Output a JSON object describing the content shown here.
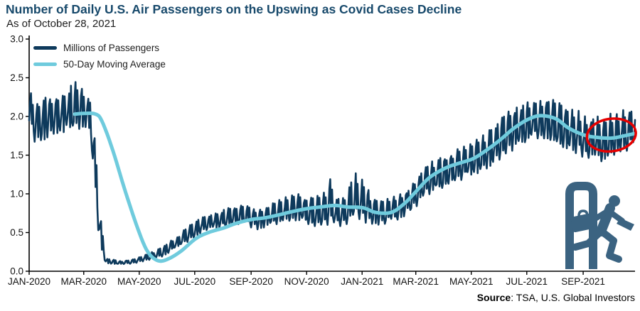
{
  "header": {
    "title": "Number of Daily U.S. Air Passengers on the Upswing as Covid Cases Decline",
    "subtitle": "As of October 28, 2021"
  },
  "source": {
    "label": "Source",
    "rest": ": TSA, U.S. Global Investors"
  },
  "colors": {
    "navy": "#0e3a5c",
    "ma_blue": "#6fcbdd",
    "title": "#17496b",
    "text": "#1d1d1d",
    "axis": "#000000",
    "annotation_red": "#e60000",
    "icon": "#3b6381"
  },
  "chart_data": {
    "type": "line",
    "title": "Number of Daily U.S. Air Passengers on the Upswing as Covid Cases Decline",
    "subtitle": "As of October 28, 2021",
    "xlabel": "",
    "ylabel": "Millions of passengers",
    "ylim": [
      0,
      3
    ],
    "y_tick_labels": [
      "0.0",
      "0.5",
      "1.0",
      "1.5",
      "2.0",
      "2.5",
      "3.0"
    ],
    "grid": false,
    "legend_position": "top-left",
    "total_days": 666,
    "x_ticks": [
      {
        "label": "JAN-2020",
        "day": 0
      },
      {
        "label": "MAR-2020",
        "day": 60
      },
      {
        "label": "MAY-2020",
        "day": 121
      },
      {
        "label": "JUL-2020",
        "day": 182
      },
      {
        "label": "SEP-2020",
        "day": 244
      },
      {
        "label": "NOV-2020",
        "day": 305
      },
      {
        "label": "JAN-2021",
        "day": 366
      },
      {
        "label": "MAR-2021",
        "day": 425
      },
      {
        "label": "MAY-2021",
        "day": 486
      },
      {
        "label": "JUL-2021",
        "day": 547
      },
      {
        "label": "SEP-2021",
        "day": 609
      }
    ],
    "series": [
      {
        "name": "Millions of Passengers",
        "type": "daily_jagged",
        "color_key": "navy",
        "note_units": "day_index_from_2020-01-01, envelope low, envelope high (millions)",
        "envelope_points": [
          [
            0,
            1.87,
            2.32
          ],
          [
            7,
            1.62,
            2.25
          ],
          [
            14,
            1.66,
            2.2
          ],
          [
            21,
            1.7,
            2.28
          ],
          [
            31,
            1.75,
            2.26
          ],
          [
            42,
            1.8,
            2.32
          ],
          [
            48,
            1.8,
            2.48
          ],
          [
            55,
            1.82,
            2.44
          ],
          [
            62,
            1.85,
            2.3
          ],
          [
            67,
            1.78,
            2.18
          ],
          [
            72,
            1.05,
            1.72
          ],
          [
            77,
            0.38,
            0.88
          ],
          [
            84,
            0.1,
            0.17
          ],
          [
            100,
            0.085,
            0.13
          ],
          [
            115,
            0.1,
            0.16
          ],
          [
            130,
            0.14,
            0.22
          ],
          [
            145,
            0.18,
            0.3
          ],
          [
            160,
            0.28,
            0.43
          ],
          [
            175,
            0.38,
            0.58
          ],
          [
            190,
            0.5,
            0.7
          ],
          [
            205,
            0.55,
            0.76
          ],
          [
            220,
            0.58,
            0.82
          ],
          [
            235,
            0.6,
            0.86
          ],
          [
            250,
            0.53,
            0.8
          ],
          [
            265,
            0.58,
            0.86
          ],
          [
            280,
            0.62,
            0.95
          ],
          [
            295,
            0.65,
            1.0
          ],
          [
            310,
            0.58,
            0.95
          ],
          [
            325,
            0.55,
            1.02
          ],
          [
            330,
            0.6,
            1.26
          ],
          [
            336,
            0.55,
            0.92
          ],
          [
            350,
            0.6,
            1.02
          ],
          [
            358,
            0.66,
            1.28
          ],
          [
            368,
            0.62,
            1.22
          ],
          [
            376,
            0.58,
            0.95
          ],
          [
            390,
            0.6,
            0.92
          ],
          [
            405,
            0.65,
            0.98
          ],
          [
            420,
            0.75,
            1.1
          ],
          [
            435,
            0.95,
            1.35
          ],
          [
            450,
            1.05,
            1.48
          ],
          [
            465,
            1.1,
            1.55
          ],
          [
            480,
            1.2,
            1.62
          ],
          [
            495,
            1.26,
            1.72
          ],
          [
            510,
            1.36,
            1.86
          ],
          [
            525,
            1.5,
            2.05
          ],
          [
            540,
            1.6,
            2.15
          ],
          [
            555,
            1.7,
            2.26
          ],
          [
            570,
            1.7,
            2.25
          ],
          [
            585,
            1.6,
            2.16
          ],
          [
            600,
            1.5,
            2.1
          ],
          [
            615,
            1.43,
            2.0
          ],
          [
            630,
            1.4,
            2.0
          ],
          [
            645,
            1.5,
            2.06
          ],
          [
            660,
            1.55,
            2.1
          ],
          [
            666,
            1.6,
            2.07
          ]
        ]
      },
      {
        "name": "50-Day Moving Average",
        "type": "smooth",
        "color_key": "ma_blue",
        "note_units": "day_index_from_2020-01-01, value (millions)",
        "points": [
          [
            50,
            2.03
          ],
          [
            61,
            2.04
          ],
          [
            73,
            2.03
          ],
          [
            80,
            1.94
          ],
          [
            92,
            1.56
          ],
          [
            106,
            1.02
          ],
          [
            121,
            0.5
          ],
          [
            131,
            0.24
          ],
          [
            142,
            0.135
          ],
          [
            153,
            0.16
          ],
          [
            167,
            0.26
          ],
          [
            183,
            0.42
          ],
          [
            197,
            0.5
          ],
          [
            214,
            0.56
          ],
          [
            228,
            0.62
          ],
          [
            245,
            0.67
          ],
          [
            259,
            0.69
          ],
          [
            275,
            0.73
          ],
          [
            289,
            0.77
          ],
          [
            306,
            0.81
          ],
          [
            320,
            0.83
          ],
          [
            336,
            0.85
          ],
          [
            350,
            0.83
          ],
          [
            367,
            0.82
          ],
          [
            381,
            0.76
          ],
          [
            398,
            0.76
          ],
          [
            412,
            0.87
          ],
          [
            426,
            1.04
          ],
          [
            440,
            1.21
          ],
          [
            457,
            1.33
          ],
          [
            471,
            1.39
          ],
          [
            487,
            1.45
          ],
          [
            501,
            1.55
          ],
          [
            518,
            1.7
          ],
          [
            532,
            1.84
          ],
          [
            548,
            1.96
          ],
          [
            562,
            2.01
          ],
          [
            579,
            1.97
          ],
          [
            593,
            1.85
          ],
          [
            610,
            1.76
          ],
          [
            624,
            1.73
          ],
          [
            640,
            1.72
          ],
          [
            654,
            1.75
          ],
          [
            666,
            1.78
          ]
        ]
      }
    ],
    "annotation_ellipse": {
      "day": 640,
      "value": 1.76,
      "rx_days": 27,
      "ry_value": 0.21,
      "rotation_deg": -8,
      "stroke_width": 3.5,
      "color_key": "annotation_red"
    }
  }
}
